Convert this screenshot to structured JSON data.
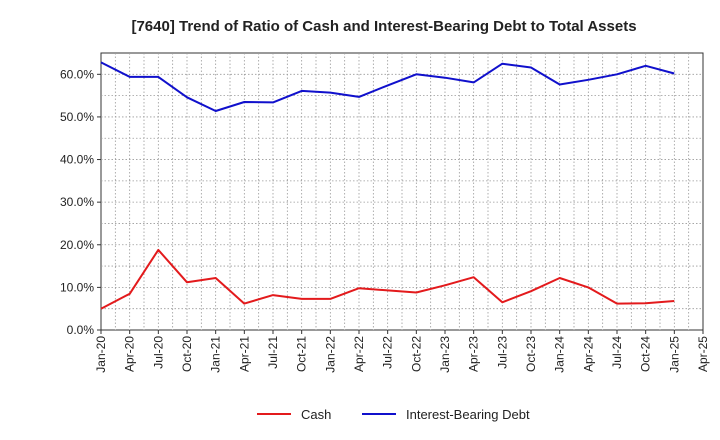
{
  "chart_data": {
    "type": "line",
    "title": "[7640]  Trend of Ratio of Cash and Interest-Bearing Debt to Total Assets",
    "xlabel": "",
    "ylabel": "",
    "ylim": [
      0,
      65
    ],
    "yticks": [
      "0.0%",
      "10.0%",
      "20.0%",
      "30.0%",
      "40.0%",
      "50.0%",
      "60.0%"
    ],
    "ytick_values": [
      0,
      10,
      20,
      30,
      40,
      50,
      60
    ],
    "x_tick_labels": [
      "Jan-20",
      "Apr-20",
      "Jul-20",
      "Oct-20",
      "Jan-21",
      "Apr-21",
      "Jul-21",
      "Oct-21",
      "Jan-22",
      "Apr-22",
      "Jul-22",
      "Oct-22",
      "Jan-23",
      "Apr-23",
      "Jul-23",
      "Oct-23",
      "Jan-24",
      "Apr-24",
      "Jul-24",
      "Oct-24",
      "Jan-25",
      "Apr-25"
    ],
    "x": [
      "Jan-20",
      "Apr-20",
      "Jul-20",
      "Oct-20",
      "Jan-21",
      "Apr-21",
      "Jul-21",
      "Oct-21",
      "Jan-22",
      "Apr-22",
      "Jul-22",
      "Oct-22",
      "Jan-23",
      "Apr-23",
      "Jul-23",
      "Oct-23",
      "Jan-24",
      "Apr-24",
      "Jul-24",
      "Oct-24",
      "Jan-25"
    ],
    "grid": true,
    "legend_position": "bottom-center",
    "series": [
      {
        "name": "Cash",
        "color": "#e31a1c",
        "values": [
          5.0,
          8.5,
          18.8,
          11.2,
          12.2,
          6.2,
          8.2,
          7.3,
          7.3,
          9.8,
          9.3,
          8.8,
          10.5,
          12.4,
          6.5,
          9.1,
          12.2,
          10.0,
          6.2,
          6.3,
          6.8
        ]
      },
      {
        "name": "Interest-Bearing Debt",
        "color": "#1010cc",
        "values": [
          62.8,
          59.4,
          59.4,
          54.6,
          51.4,
          53.5,
          53.4,
          56.1,
          55.7,
          54.7,
          57.4,
          60.0,
          59.2,
          58.1,
          62.5,
          61.6,
          57.6,
          58.7,
          60.0,
          62.0,
          60.2
        ]
      }
    ]
  }
}
